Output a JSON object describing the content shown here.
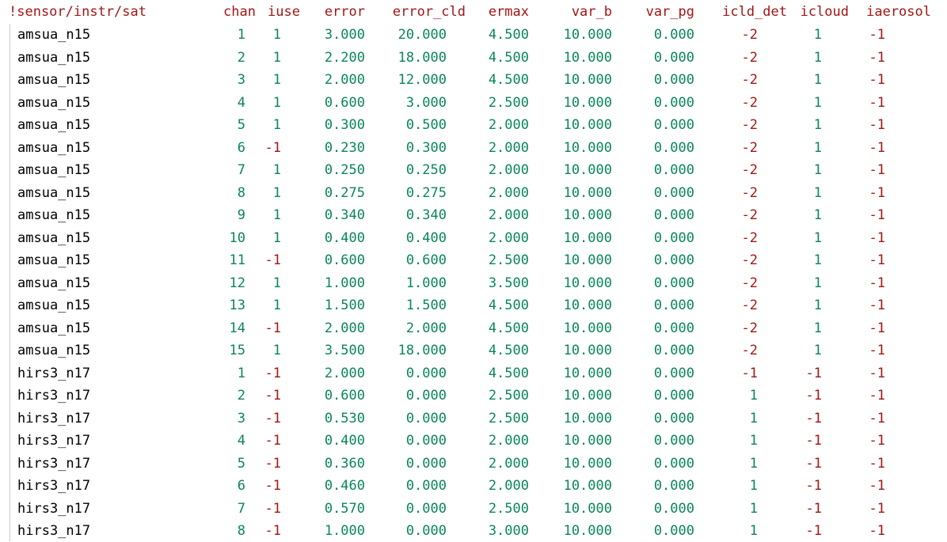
{
  "colors": {
    "header": "#a31515",
    "sensor_text": "#000000",
    "positive_number": "#098658",
    "negative_number": "#a31515",
    "background": "#ffffff"
  },
  "header": {
    "sensor": "!sensor/instr/sat",
    "chan": "chan",
    "iuse": "iuse",
    "error": "error",
    "error_cld": "error_cld",
    "ermax": "ermax",
    "var_b": "var_b",
    "var_pg": "var_pg",
    "icld_det": "icld_det",
    "icloud": "icloud",
    "iaerosol": "iaerosol"
  },
  "rows": [
    {
      "sensor": "amsua_n15",
      "chan": "1",
      "iuse": "1",
      "error": "3.000",
      "error_cld": "20.000",
      "ermax": "4.500",
      "var_b": "10.000",
      "var_pg": "0.000",
      "icld_det": "-2",
      "icloud": "1",
      "iaerosol": "-1"
    },
    {
      "sensor": "amsua_n15",
      "chan": "2",
      "iuse": "1",
      "error": "2.200",
      "error_cld": "18.000",
      "ermax": "4.500",
      "var_b": "10.000",
      "var_pg": "0.000",
      "icld_det": "-2",
      "icloud": "1",
      "iaerosol": "-1"
    },
    {
      "sensor": "amsua_n15",
      "chan": "3",
      "iuse": "1",
      "error": "2.000",
      "error_cld": "12.000",
      "ermax": "4.500",
      "var_b": "10.000",
      "var_pg": "0.000",
      "icld_det": "-2",
      "icloud": "1",
      "iaerosol": "-1"
    },
    {
      "sensor": "amsua_n15",
      "chan": "4",
      "iuse": "1",
      "error": "0.600",
      "error_cld": "3.000",
      "ermax": "2.500",
      "var_b": "10.000",
      "var_pg": "0.000",
      "icld_det": "-2",
      "icloud": "1",
      "iaerosol": "-1"
    },
    {
      "sensor": "amsua_n15",
      "chan": "5",
      "iuse": "1",
      "error": "0.300",
      "error_cld": "0.500",
      "ermax": "2.000",
      "var_b": "10.000",
      "var_pg": "0.000",
      "icld_det": "-2",
      "icloud": "1",
      "iaerosol": "-1"
    },
    {
      "sensor": "amsua_n15",
      "chan": "6",
      "iuse": "-1",
      "error": "0.230",
      "error_cld": "0.300",
      "ermax": "2.000",
      "var_b": "10.000",
      "var_pg": "0.000",
      "icld_det": "-2",
      "icloud": "1",
      "iaerosol": "-1"
    },
    {
      "sensor": "amsua_n15",
      "chan": "7",
      "iuse": "1",
      "error": "0.250",
      "error_cld": "0.250",
      "ermax": "2.000",
      "var_b": "10.000",
      "var_pg": "0.000",
      "icld_det": "-2",
      "icloud": "1",
      "iaerosol": "-1"
    },
    {
      "sensor": "amsua_n15",
      "chan": "8",
      "iuse": "1",
      "error": "0.275",
      "error_cld": "0.275",
      "ermax": "2.000",
      "var_b": "10.000",
      "var_pg": "0.000",
      "icld_det": "-2",
      "icloud": "1",
      "iaerosol": "-1"
    },
    {
      "sensor": "amsua_n15",
      "chan": "9",
      "iuse": "1",
      "error": "0.340",
      "error_cld": "0.340",
      "ermax": "2.000",
      "var_b": "10.000",
      "var_pg": "0.000",
      "icld_det": "-2",
      "icloud": "1",
      "iaerosol": "-1"
    },
    {
      "sensor": "amsua_n15",
      "chan": "10",
      "iuse": "1",
      "error": "0.400",
      "error_cld": "0.400",
      "ermax": "2.000",
      "var_b": "10.000",
      "var_pg": "0.000",
      "icld_det": "-2",
      "icloud": "1",
      "iaerosol": "-1"
    },
    {
      "sensor": "amsua_n15",
      "chan": "11",
      "iuse": "-1",
      "error": "0.600",
      "error_cld": "0.600",
      "ermax": "2.500",
      "var_b": "10.000",
      "var_pg": "0.000",
      "icld_det": "-2",
      "icloud": "1",
      "iaerosol": "-1"
    },
    {
      "sensor": "amsua_n15",
      "chan": "12",
      "iuse": "1",
      "error": "1.000",
      "error_cld": "1.000",
      "ermax": "3.500",
      "var_b": "10.000",
      "var_pg": "0.000",
      "icld_det": "-2",
      "icloud": "1",
      "iaerosol": "-1"
    },
    {
      "sensor": "amsua_n15",
      "chan": "13",
      "iuse": "1",
      "error": "1.500",
      "error_cld": "1.500",
      "ermax": "4.500",
      "var_b": "10.000",
      "var_pg": "0.000",
      "icld_det": "-2",
      "icloud": "1",
      "iaerosol": "-1"
    },
    {
      "sensor": "amsua_n15",
      "chan": "14",
      "iuse": "-1",
      "error": "2.000",
      "error_cld": "2.000",
      "ermax": "4.500",
      "var_b": "10.000",
      "var_pg": "0.000",
      "icld_det": "-2",
      "icloud": "1",
      "iaerosol": "-1"
    },
    {
      "sensor": "amsua_n15",
      "chan": "15",
      "iuse": "1",
      "error": "3.500",
      "error_cld": "18.000",
      "ermax": "4.500",
      "var_b": "10.000",
      "var_pg": "0.000",
      "icld_det": "-2",
      "icloud": "1",
      "iaerosol": "-1"
    },
    {
      "sensor": "hirs3_n17",
      "chan": "1",
      "iuse": "-1",
      "error": "2.000",
      "error_cld": "0.000",
      "ermax": "4.500",
      "var_b": "10.000",
      "var_pg": "0.000",
      "icld_det": "-1",
      "icloud": "-1",
      "iaerosol": "-1"
    },
    {
      "sensor": "hirs3_n17",
      "chan": "2",
      "iuse": "-1",
      "error": "0.600",
      "error_cld": "0.000",
      "ermax": "2.500",
      "var_b": "10.000",
      "var_pg": "0.000",
      "icld_det": "1",
      "icloud": "-1",
      "iaerosol": "-1"
    },
    {
      "sensor": "hirs3_n17",
      "chan": "3",
      "iuse": "-1",
      "error": "0.530",
      "error_cld": "0.000",
      "ermax": "2.500",
      "var_b": "10.000",
      "var_pg": "0.000",
      "icld_det": "1",
      "icloud": "-1",
      "iaerosol": "-1"
    },
    {
      "sensor": "hirs3_n17",
      "chan": "4",
      "iuse": "-1",
      "error": "0.400",
      "error_cld": "0.000",
      "ermax": "2.000",
      "var_b": "10.000",
      "var_pg": "0.000",
      "icld_det": "1",
      "icloud": "-1",
      "iaerosol": "-1"
    },
    {
      "sensor": "hirs3_n17",
      "chan": "5",
      "iuse": "-1",
      "error": "0.360",
      "error_cld": "0.000",
      "ermax": "2.000",
      "var_b": "10.000",
      "var_pg": "0.000",
      "icld_det": "1",
      "icloud": "-1",
      "iaerosol": "-1"
    },
    {
      "sensor": "hirs3_n17",
      "chan": "6",
      "iuse": "-1",
      "error": "0.460",
      "error_cld": "0.000",
      "ermax": "2.000",
      "var_b": "10.000",
      "var_pg": "0.000",
      "icld_det": "1",
      "icloud": "-1",
      "iaerosol": "-1"
    },
    {
      "sensor": "hirs3_n17",
      "chan": "7",
      "iuse": "-1",
      "error": "0.570",
      "error_cld": "0.000",
      "ermax": "2.500",
      "var_b": "10.000",
      "var_pg": "0.000",
      "icld_det": "1",
      "icloud": "-1",
      "iaerosol": "-1"
    },
    {
      "sensor": "hirs3_n17",
      "chan": "8",
      "iuse": "-1",
      "error": "1.000",
      "error_cld": "0.000",
      "ermax": "3.000",
      "var_b": "10.000",
      "var_pg": "0.000",
      "icld_det": "1",
      "icloud": "-1",
      "iaerosol": "-1"
    }
  ]
}
